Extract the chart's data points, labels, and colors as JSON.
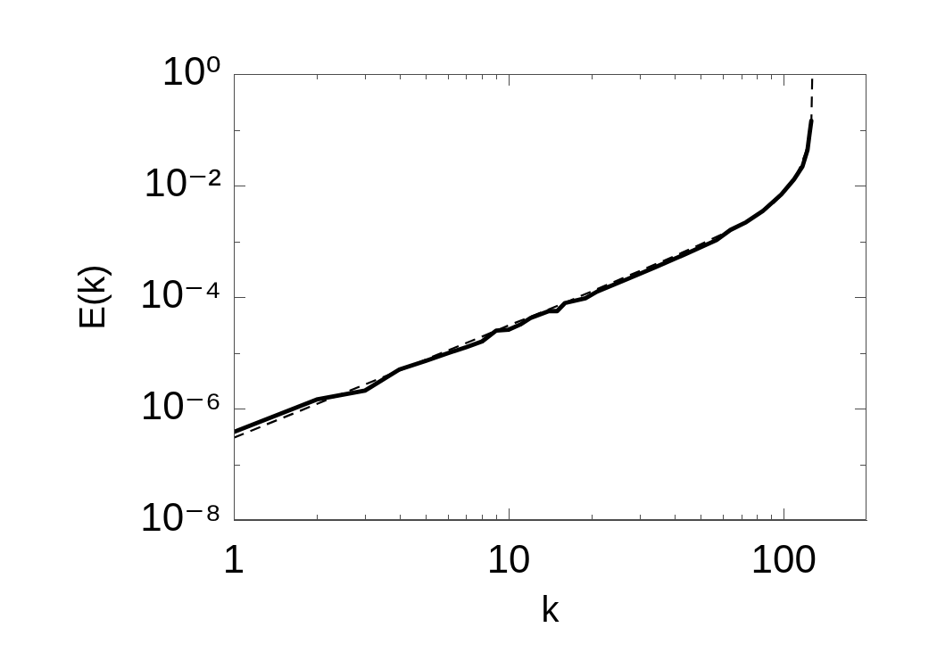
{
  "chart_data": {
    "type": "line",
    "xlabel": "k",
    "ylabel": "E(k)",
    "log": "xy",
    "xlim": [
      1,
      200
    ],
    "xticks": [
      1,
      {
        "value": 2,
        "label": null
      },
      {
        "value": 3,
        "label": null
      },
      {
        "value": 4,
        "label": null
      },
      {
        "value": 5,
        "label": null
      },
      {
        "value": 6,
        "label": null
      },
      {
        "value": 7,
        "label": null
      },
      {
        "value": 8,
        "label": null
      },
      {
        "value": 9,
        "label": null
      },
      10,
      {
        "value": 20,
        "label": null
      },
      {
        "value": 30,
        "label": null
      },
      {
        "value": 40,
        "label": null
      },
      {
        "value": 50,
        "label": null
      },
      {
        "value": 60,
        "label": null
      },
      {
        "value": 70,
        "label": null
      },
      {
        "value": 80,
        "label": null
      },
      {
        "value": 90,
        "label": null
      },
      100
    ],
    "ylim": [
      1e-08,
      1
    ],
    "yticks": [
      {
        "value": 1e-08,
        "label": "10⁻⁸"
      },
      {
        "value": 1e-07,
        "label": null
      },
      {
        "value": 1e-06,
        "label": "10⁻⁶"
      },
      {
        "value": 1e-05,
        "label": null
      },
      {
        "value": 0.0001,
        "label": "10⁻⁴"
      },
      {
        "value": 0.001,
        "label": null
      },
      {
        "value": 0.01,
        "label": "10⁻²"
      },
      {
        "value": 0.1,
        "label": null
      },
      {
        "value": 1,
        "label": "10⁰"
      }
    ],
    "series": [
      {
        "color": "#000000",
        "line_style": "solid",
        "x": [
          1,
          2,
          3,
          4,
          5,
          6,
          7,
          8,
          9,
          10,
          11,
          12,
          14,
          15,
          16,
          19,
          21,
          27,
          34,
          44,
          57,
          64,
          73,
          84,
          98,
          109,
          117,
          122,
          124,
          126
        ],
        "values": [
          3.8e-07,
          1.45e-06,
          2.1e-06,
          5e-06,
          7.2e-06,
          9.8e-06,
          1.26e-05,
          1.6e-05,
          2.5e-05,
          2.6e-05,
          3.2e-05,
          4.2e-05,
          5.6e-05,
          5.6e-05,
          7.8e-05,
          9.5e-05,
          0.000126,
          0.00021,
          0.00034,
          0.00059,
          0.00105,
          0.0016,
          0.0022,
          0.0035,
          0.0069,
          0.0129,
          0.022,
          0.043,
          0.081,
          0.145
        ]
      },
      {
        "color": "#000000",
        "line_style": "dashed",
        "x": [
          1,
          2,
          3,
          4,
          5,
          6,
          8,
          10,
          15,
          20,
          30,
          40,
          50,
          60,
          70,
          80,
          90,
          100,
          110,
          115,
          120,
          124,
          126,
          127
        ],
        "values": [
          3e-07,
          1.2e-06,
          2.7e-06,
          4.8e-06,
          7.6e-06,
          1.1e-05,
          1.95e-05,
          3.1e-05,
          6.9e-05,
          0.000126,
          0.000295,
          0.00054,
          0.00089,
          0.00135,
          0.002,
          0.00295,
          0.0044,
          0.0074,
          0.0138,
          0.022,
          0.038,
          0.079,
          0.13,
          0.95
        ]
      }
    ]
  }
}
